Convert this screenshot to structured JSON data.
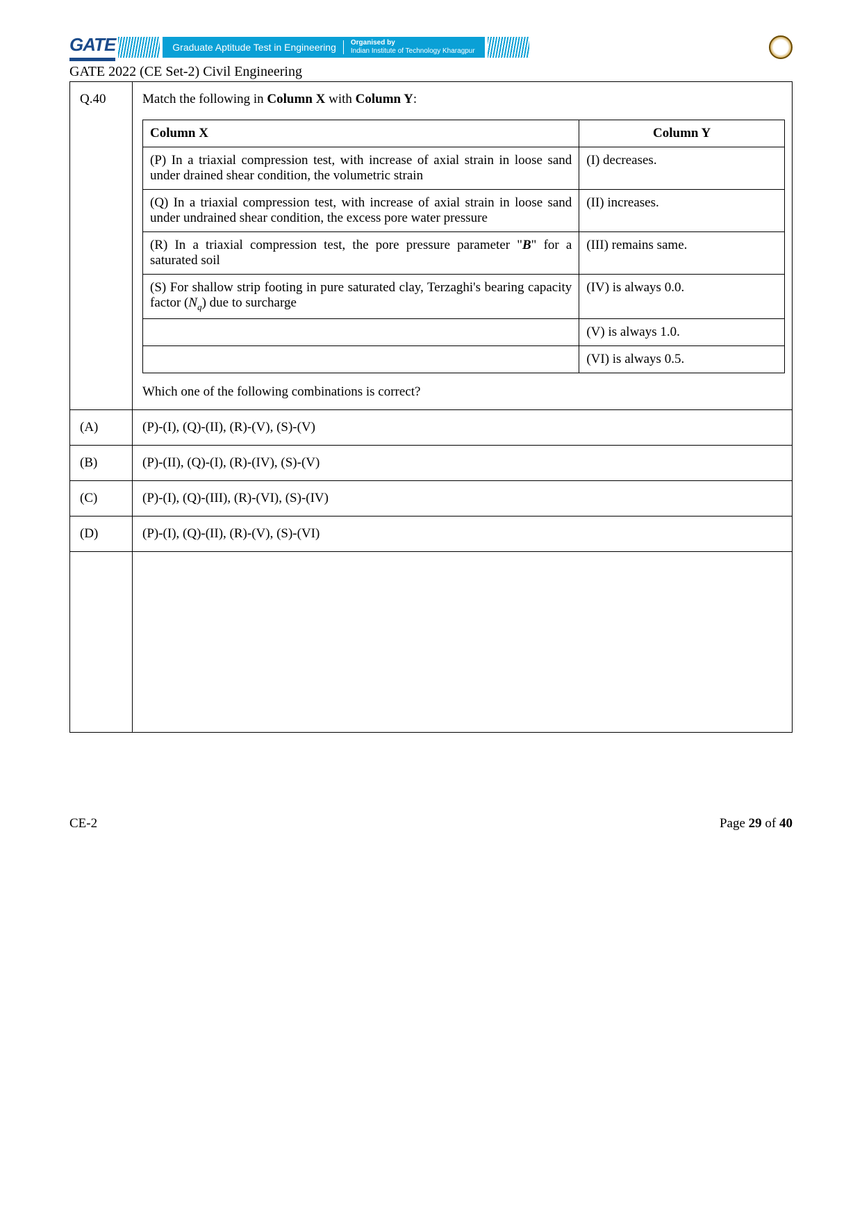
{
  "header": {
    "logo_text": "GATE",
    "banner_title": "Graduate Aptitude Test in Engineering",
    "organised_label": "Organised by",
    "organiser": "Indian Institute of Technology Kharagpur",
    "banner_bg": "#0aa0d6",
    "subject_line": "GATE 2022 (CE Set-2) Civil Engineering"
  },
  "question": {
    "number": "Q.40",
    "stem_prefix": "Match the following in ",
    "bold1": "Column X",
    "stem_mid": " with ",
    "bold2": "Column Y",
    "stem_suffix": ":",
    "followup": "Which one of the following combinations is correct?"
  },
  "match": {
    "header_x": "Column X",
    "header_y": "Column Y",
    "rows": [
      {
        "x": "(P) In a triaxial compression test, with increase of axial strain in loose sand under drained shear condition, the volumetric strain",
        "y": "(I) decreases."
      },
      {
        "x": "(Q) In a triaxial compression test, with increase of axial strain in loose sand under undrained shear condition, the excess pore water pressure",
        "y": "(II) increases."
      },
      {
        "x_html": "(R) In a triaxial compression test, the pore pressure parameter \"<b><i>B</i></b>\" for a saturated soil",
        "y": "(III) remains same."
      },
      {
        "x_html": "(S) For shallow strip footing in pure saturated clay, Terzaghi's bearing capacity factor (<span class='nq'>N<sub>q</sub></span>) due to surcharge",
        "y": "(IV) is always 0.0."
      },
      {
        "x": "",
        "y": "(V) is always 1.0."
      },
      {
        "x": "",
        "y": "(VI) is always 0.5."
      }
    ]
  },
  "options": [
    {
      "label": "(A)",
      "text": "(P)-(I), (Q)-(II), (R)-(V), (S)-(V)"
    },
    {
      "label": "(B)",
      "text": "(P)-(II), (Q)-(I), (R)-(IV), (S)-(V)"
    },
    {
      "label": "(C)",
      "text": "(P)-(I), (Q)-(III), (R)-(VI), (S)-(IV)"
    },
    {
      "label": "(D)",
      "text": "(P)-(I), (Q)-(II), (R)-(V), (S)-(VI)"
    }
  ],
  "footer": {
    "left": "CE-2",
    "right_prefix": "Page ",
    "page_current": "29",
    "right_mid": " of ",
    "page_total": "40"
  }
}
